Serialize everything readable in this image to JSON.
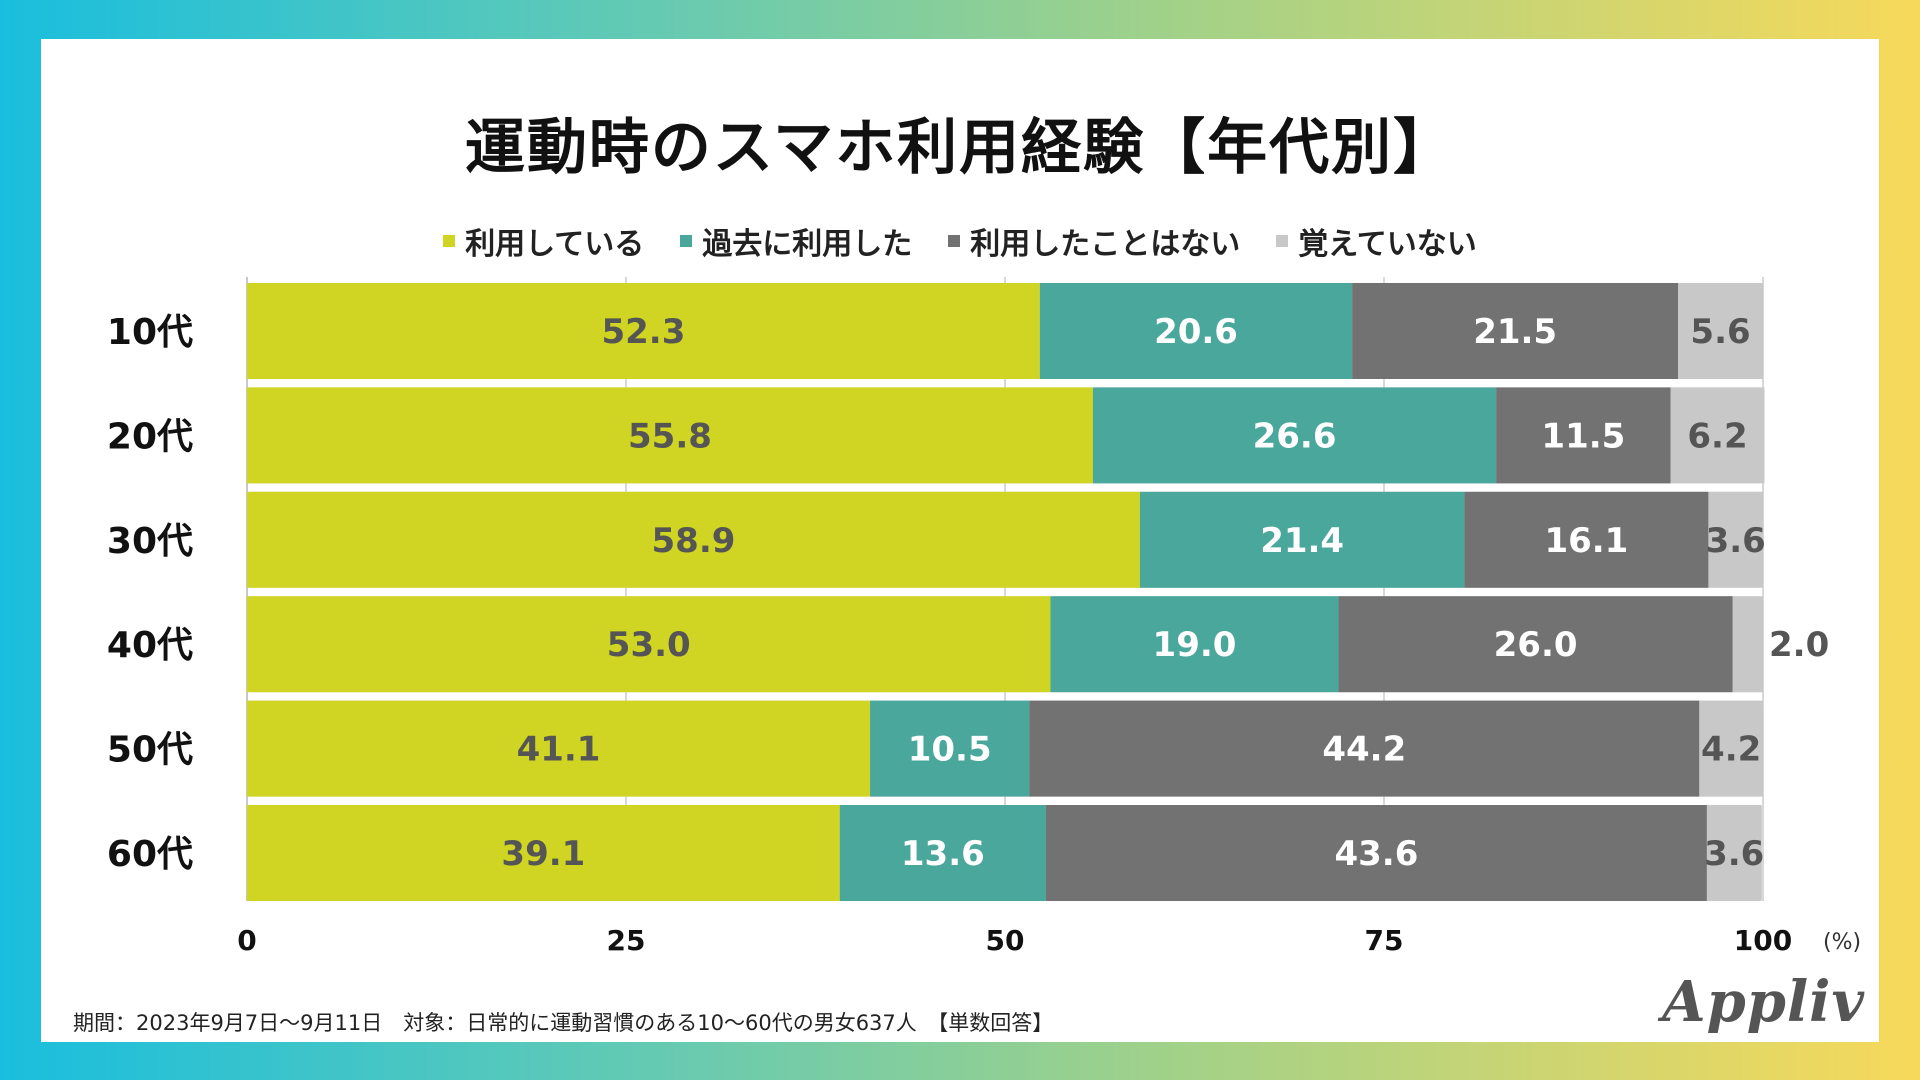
{
  "title": "運動時のスマホ利用経験【年代別】",
  "footer": "期間：2023年9月7日〜9月11日　対象：日常的に運動習慣のある10〜60代の男女637人　【単数回答】",
  "logo": "Appliv",
  "chart_data": {
    "type": "bar",
    "orientation": "horizontal",
    "stacked": true,
    "title": "運動時のスマホ利用経験【年代別】",
    "categories": [
      "10代",
      "20代",
      "30代",
      "40代",
      "50代",
      "60代"
    ],
    "series": [
      {
        "name": "利用している",
        "color": "#cfd522",
        "label_color": "#555555",
        "values": [
          52.3,
          55.8,
          58.9,
          53.0,
          41.1,
          39.1
        ]
      },
      {
        "name": "過去に利用した",
        "color": "#4aa79b",
        "label_color": "#ffffff",
        "values": [
          20.6,
          26.6,
          21.4,
          19.0,
          10.5,
          13.6
        ]
      },
      {
        "name": "利用したことはない",
        "color": "#727272",
        "label_color": "#ffffff",
        "values": [
          21.5,
          11.5,
          16.1,
          26.0,
          44.2,
          43.6
        ]
      },
      {
        "name": "覚えていない",
        "color": "#c8c8c8",
        "label_color": "#555555",
        "values": [
          5.6,
          6.2,
          3.6,
          2.0,
          4.2,
          3.6
        ]
      }
    ],
    "value_labels": [
      [
        "52.3",
        "55.8",
        "58.9",
        "53.0",
        "41.1",
        "39.1"
      ],
      [
        "20.6",
        "26.6",
        "21.4",
        "19.0",
        "10.5",
        "13.6"
      ],
      [
        "21.5",
        "11.5",
        "16.1",
        "26.0",
        "44.2",
        "43.6"
      ],
      [
        "5.6",
        "6.2",
        "3.6",
        "2.0",
        "4.2",
        "3.6"
      ]
    ],
    "x_ticks": [
      0,
      25,
      50,
      75,
      100
    ],
    "x_tick_labels": [
      "0",
      "25",
      "50",
      "75",
      "100"
    ],
    "x_unit": "(%)",
    "xlim": [
      0,
      100
    ],
    "grid": true,
    "legend_position": "top"
  }
}
